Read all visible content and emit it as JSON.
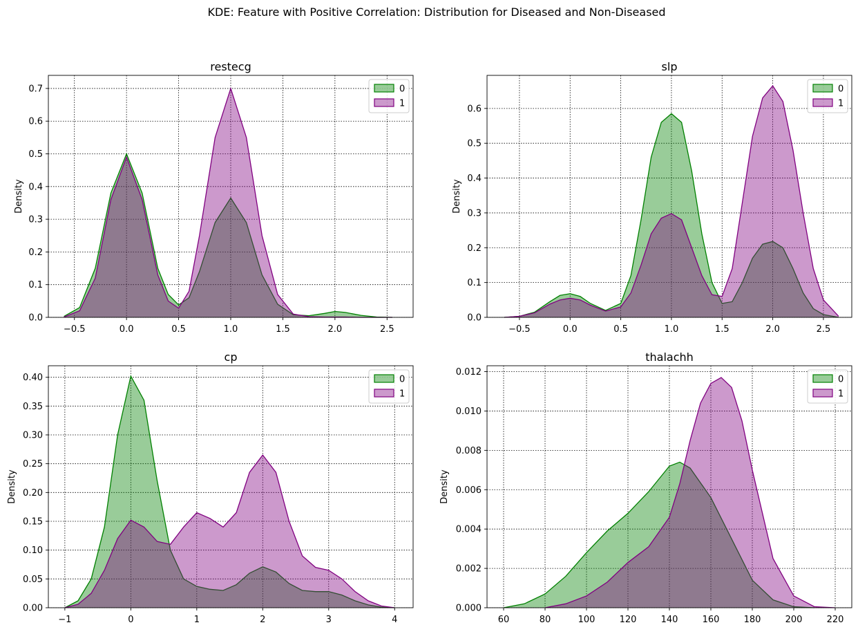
{
  "suptitle": "KDE: Feature with Positive Correlation: Distribution for Diseased and Non-Diseased",
  "colors": {
    "class_0": "#008000",
    "class_1": "#800080"
  },
  "chart_data": [
    {
      "type": "area",
      "title": "restecg",
      "xlabel": "",
      "ylabel": "Density",
      "xlim": [
        -0.75,
        2.75
      ],
      "ylim": [
        0,
        0.74
      ],
      "xticks": [
        -0.5,
        0.0,
        0.5,
        1.0,
        1.5,
        2.0,
        2.5
      ],
      "xtick_labels": [
        "−0.5",
        "0.0",
        "0.5",
        "1.0",
        "1.5",
        "2.0",
        "2.5"
      ],
      "yticks": [
        0.0,
        0.1,
        0.2,
        0.3,
        0.4,
        0.5,
        0.6,
        0.7
      ],
      "ytick_labels": [
        "0.0",
        "0.1",
        "0.2",
        "0.3",
        "0.4",
        "0.5",
        "0.6",
        "0.7"
      ],
      "grid": true,
      "legend": {
        "placement": "top-right",
        "entries": [
          "0",
          "1"
        ]
      },
      "series": [
        {
          "legend_label": "0",
          "color": "#008000",
          "x": [
            -0.6,
            -0.45,
            -0.3,
            -0.15,
            0.0,
            0.15,
            0.3,
            0.4,
            0.5,
            0.6,
            0.7,
            0.85,
            1.0,
            1.15,
            1.3,
            1.45,
            1.6,
            1.75,
            1.9,
            2.0,
            2.1,
            2.25,
            2.4,
            2.55
          ],
          "y": [
            0.003,
            0.03,
            0.15,
            0.38,
            0.5,
            0.38,
            0.15,
            0.07,
            0.038,
            0.06,
            0.14,
            0.29,
            0.365,
            0.29,
            0.13,
            0.04,
            0.008,
            0.005,
            0.012,
            0.018,
            0.015,
            0.006,
            0.001,
            0.0
          ]
        },
        {
          "legend_label": "1",
          "color": "#800080",
          "x": [
            -0.6,
            -0.45,
            -0.3,
            -0.15,
            0.0,
            0.15,
            0.3,
            0.4,
            0.5,
            0.6,
            0.7,
            0.85,
            1.0,
            1.15,
            1.3,
            1.45,
            1.6,
            1.75,
            1.9,
            2.0,
            2.1,
            2.25,
            2.4,
            2.55
          ],
          "y": [
            0.001,
            0.02,
            0.12,
            0.36,
            0.49,
            0.36,
            0.13,
            0.05,
            0.028,
            0.08,
            0.25,
            0.55,
            0.7,
            0.55,
            0.25,
            0.07,
            0.01,
            0.002,
            0.001,
            0.001,
            0.001,
            0.0,
            0.0,
            0.0
          ]
        }
      ]
    },
    {
      "type": "area",
      "title": "slp",
      "xlabel": "",
      "ylabel": "Density",
      "xlim": [
        -0.82,
        2.78
      ],
      "ylim": [
        0,
        0.695
      ],
      "xticks": [
        -0.5,
        0.0,
        0.5,
        1.0,
        1.5,
        2.0,
        2.5
      ],
      "xtick_labels": [
        "−0.5",
        "0.0",
        "0.5",
        "1.0",
        "1.5",
        "2.0",
        "2.5"
      ],
      "yticks": [
        0.0,
        0.1,
        0.2,
        0.3,
        0.4,
        0.5,
        0.6
      ],
      "ytick_labels": [
        "0.0",
        "0.1",
        "0.2",
        "0.3",
        "0.4",
        "0.5",
        "0.6"
      ],
      "grid": true,
      "legend": {
        "placement": "top-right",
        "entries": [
          "0",
          "1"
        ]
      },
      "series": [
        {
          "legend_label": "0",
          "color": "#008000",
          "x": [
            -0.65,
            -0.5,
            -0.35,
            -0.2,
            -0.1,
            0.0,
            0.1,
            0.2,
            0.35,
            0.5,
            0.6,
            0.7,
            0.8,
            0.9,
            1.0,
            1.1,
            1.2,
            1.3,
            1.4,
            1.5,
            1.6,
            1.7,
            1.8,
            1.9,
            2.0,
            2.1,
            2.2,
            2.3,
            2.4,
            2.5,
            2.65
          ],
          "y": [
            0.0,
            0.003,
            0.015,
            0.045,
            0.063,
            0.068,
            0.06,
            0.04,
            0.02,
            0.04,
            0.12,
            0.28,
            0.46,
            0.56,
            0.585,
            0.56,
            0.42,
            0.24,
            0.1,
            0.04,
            0.045,
            0.1,
            0.17,
            0.21,
            0.218,
            0.2,
            0.14,
            0.07,
            0.025,
            0.008,
            0.0
          ]
        },
        {
          "legend_label": "1",
          "color": "#800080",
          "x": [
            -0.65,
            -0.5,
            -0.35,
            -0.2,
            -0.1,
            0.0,
            0.1,
            0.2,
            0.35,
            0.5,
            0.6,
            0.7,
            0.8,
            0.9,
            1.0,
            1.1,
            1.2,
            1.3,
            1.4,
            1.5,
            1.6,
            1.7,
            1.8,
            1.9,
            2.0,
            2.1,
            2.2,
            2.3,
            2.4,
            2.5,
            2.65
          ],
          "y": [
            0.0,
            0.003,
            0.013,
            0.038,
            0.05,
            0.055,
            0.05,
            0.035,
            0.018,
            0.03,
            0.07,
            0.15,
            0.24,
            0.285,
            0.298,
            0.28,
            0.2,
            0.12,
            0.065,
            0.06,
            0.14,
            0.33,
            0.52,
            0.63,
            0.665,
            0.62,
            0.48,
            0.3,
            0.14,
            0.05,
            0.003
          ]
        }
      ]
    },
    {
      "type": "area",
      "title": "cp",
      "xlabel": "",
      "ylabel": "Density",
      "xlim": [
        -1.25,
        4.28
      ],
      "ylim": [
        0,
        0.42
      ],
      "xticks": [
        -1,
        0,
        1,
        2,
        3,
        4
      ],
      "xtick_labels": [
        "−1",
        "0",
        "1",
        "2",
        "3",
        "4"
      ],
      "yticks": [
        0.0,
        0.05,
        0.1,
        0.15,
        0.2,
        0.25,
        0.3,
        0.35,
        0.4
      ],
      "ytick_labels": [
        "0.00",
        "0.05",
        "0.10",
        "0.15",
        "0.20",
        "0.25",
        "0.30",
        "0.35",
        "0.40"
      ],
      "grid": true,
      "legend": {
        "placement": "top-right",
        "entries": [
          "0",
          "1"
        ]
      },
      "series": [
        {
          "legend_label": "0",
          "color": "#008000",
          "x": [
            -1.0,
            -0.8,
            -0.6,
            -0.4,
            -0.2,
            0.0,
            0.2,
            0.4,
            0.6,
            0.8,
            1.0,
            1.2,
            1.4,
            1.6,
            1.8,
            2.0,
            2.2,
            2.4,
            2.6,
            2.8,
            3.0,
            3.2,
            3.4,
            3.6,
            3.8,
            4.0
          ],
          "y": [
            0.0,
            0.012,
            0.05,
            0.14,
            0.3,
            0.402,
            0.36,
            0.22,
            0.1,
            0.05,
            0.037,
            0.032,
            0.03,
            0.04,
            0.06,
            0.071,
            0.062,
            0.042,
            0.03,
            0.028,
            0.028,
            0.022,
            0.012,
            0.005,
            0.001,
            0.0
          ]
        },
        {
          "legend_label": "1",
          "color": "#800080",
          "x": [
            -1.0,
            -0.8,
            -0.6,
            -0.4,
            -0.2,
            0.0,
            0.2,
            0.4,
            0.6,
            0.8,
            1.0,
            1.2,
            1.4,
            1.6,
            1.8,
            2.0,
            2.2,
            2.4,
            2.6,
            2.8,
            3.0,
            3.2,
            3.4,
            3.6,
            3.8,
            4.0
          ],
          "y": [
            0.0,
            0.006,
            0.025,
            0.065,
            0.12,
            0.152,
            0.14,
            0.115,
            0.11,
            0.14,
            0.165,
            0.155,
            0.14,
            0.165,
            0.235,
            0.265,
            0.235,
            0.15,
            0.09,
            0.07,
            0.065,
            0.05,
            0.028,
            0.012,
            0.003,
            0.0
          ]
        }
      ]
    },
    {
      "type": "area",
      "title": "thalachh",
      "xlabel": "",
      "ylabel": "Density",
      "xlim": [
        52,
        228
      ],
      "ylim": [
        0,
        0.0123
      ],
      "xticks": [
        60,
        80,
        100,
        120,
        140,
        160,
        180,
        200,
        220
      ],
      "xtick_labels": [
        "60",
        "80",
        "100",
        "120",
        "140",
        "160",
        "180",
        "200",
        "220"
      ],
      "yticks": [
        0.0,
        0.002,
        0.004,
        0.006,
        0.008,
        0.01,
        0.012
      ],
      "ytick_labels": [
        "0.000",
        "0.002",
        "0.004",
        "0.006",
        "0.008",
        "0.010",
        "0.012"
      ],
      "grid": true,
      "legend": {
        "placement": "top-right",
        "entries": [
          "0",
          "1"
        ]
      },
      "series": [
        {
          "legend_label": "0",
          "color": "#008000",
          "x": [
            60,
            70,
            80,
            90,
            100,
            110,
            120,
            130,
            140,
            145,
            150,
            160,
            170,
            180,
            190,
            200,
            210
          ],
          "y": [
            0.0,
            0.0002,
            0.0007,
            0.0016,
            0.0028,
            0.0039,
            0.0048,
            0.0059,
            0.0072,
            0.0074,
            0.0071,
            0.0056,
            0.0035,
            0.0014,
            0.0004,
            5e-05,
            0.0
          ]
        },
        {
          "legend_label": "1",
          "color": "#800080",
          "x": [
            80,
            90,
            100,
            110,
            120,
            130,
            140,
            145,
            150,
            155,
            160,
            165,
            170,
            175,
            180,
            190,
            200,
            210,
            220
          ],
          "y": [
            0.0,
            0.0002,
            0.0006,
            0.0013,
            0.0023,
            0.0031,
            0.0046,
            0.0063,
            0.0085,
            0.0104,
            0.0114,
            0.0117,
            0.0112,
            0.0095,
            0.007,
            0.0025,
            0.0006,
            5e-05,
            0.0
          ]
        }
      ]
    }
  ]
}
